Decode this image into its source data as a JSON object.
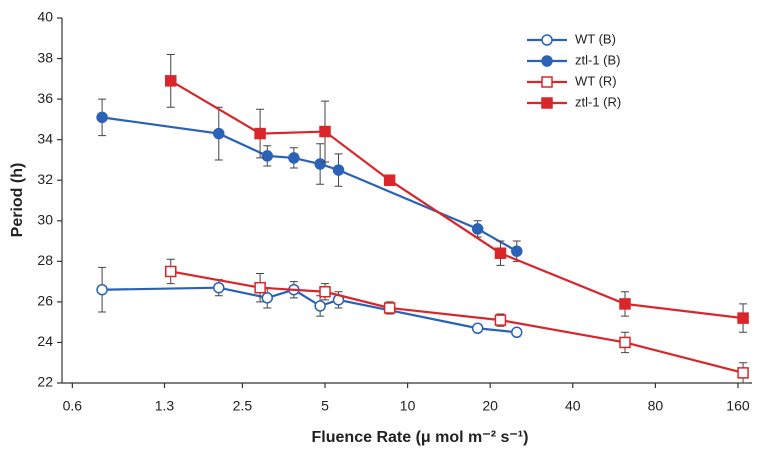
{
  "chart_data": {
    "type": "line",
    "xlabel": "Fluence Rate (μ mol m⁻² s⁻¹)",
    "ylabel": "Period (h)",
    "xscale": "log",
    "xlim": [
      0.55,
      180
    ],
    "ylim": [
      22,
      40
    ],
    "xticks": [
      0.6,
      1.3,
      2.5,
      5,
      10,
      20,
      40,
      80,
      160
    ],
    "yticks": [
      22,
      24,
      26,
      28,
      30,
      32,
      34,
      36,
      38,
      40
    ],
    "series": [
      {
        "name": "WT  (B)",
        "color": "#2a62b8",
        "marker": "circle",
        "filled": false,
        "x": [
          0.77,
          2.05,
          3.08,
          3.85,
          4.8,
          5.6,
          18,
          25
        ],
        "values": [
          26.6,
          26.7,
          26.2,
          26.6,
          25.8,
          26.1,
          24.7,
          24.5
        ],
        "errors": [
          1.1,
          0.4,
          0.5,
          0.4,
          0.5,
          0.4,
          0.1,
          0.1
        ]
      },
      {
        "name": "ztl-1 (B)",
        "color": "#2a62b8",
        "marker": "circle",
        "filled": true,
        "x": [
          0.77,
          2.05,
          3.08,
          3.85,
          4.8,
          5.6,
          18,
          25
        ],
        "values": [
          35.1,
          34.3,
          33.2,
          33.1,
          32.8,
          32.5,
          29.6,
          28.5
        ],
        "errors": [
          0.9,
          1.3,
          0.5,
          0.5,
          1.0,
          0.8,
          0.4,
          0.5
        ]
      },
      {
        "name": "WT  (R)",
        "color": "#d8262b",
        "marker": "square",
        "filled": false,
        "x": [
          1.37,
          2.9,
          5.0,
          8.6,
          21.8,
          62,
          167
        ],
        "values": [
          27.5,
          26.7,
          26.5,
          25.7,
          25.1,
          24.0,
          22.5
        ],
        "errors": [
          0.6,
          0.7,
          0.4,
          0.3,
          0.3,
          0.5,
          0.5
        ]
      },
      {
        "name": "ztl-1 (R)",
        "color": "#d8262b",
        "marker": "square",
        "filled": true,
        "x": [
          1.37,
          2.9,
          5.0,
          8.6,
          21.8,
          62,
          167
        ],
        "values": [
          36.9,
          34.3,
          34.4,
          32.0,
          28.4,
          25.9,
          25.2
        ],
        "errors": [
          1.3,
          1.2,
          1.5,
          0.1,
          0.6,
          0.6,
          0.7
        ]
      }
    ]
  }
}
